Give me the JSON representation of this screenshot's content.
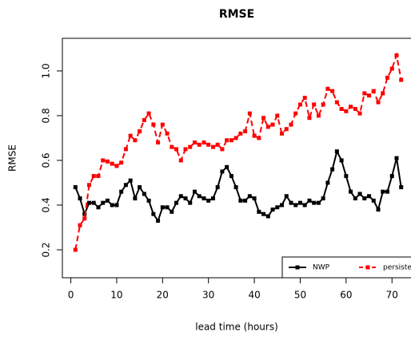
{
  "chart_data": {
    "type": "line",
    "title": "RMSE",
    "xlabel": "lead time (hours)",
    "ylabel": "RMSE",
    "x": [
      1,
      2,
      3,
      4,
      5,
      6,
      7,
      8,
      9,
      10,
      11,
      12,
      13,
      14,
      15,
      16,
      17,
      18,
      19,
      20,
      21,
      22,
      23,
      24,
      25,
      26,
      27,
      28,
      29,
      30,
      31,
      32,
      33,
      34,
      35,
      36,
      37,
      38,
      39,
      40,
      41,
      42,
      43,
      44,
      45,
      46,
      47,
      48,
      49,
      50,
      51,
      52,
      53,
      54,
      55,
      56,
      57,
      58,
      59,
      60,
      61,
      62,
      63,
      64,
      65,
      66,
      67,
      68,
      69,
      70,
      71,
      72
    ],
    "series": [
      {
        "name": "NWP",
        "color": "#000000",
        "dashed": false,
        "values": [
          0.48,
          0.43,
          0.36,
          0.41,
          0.41,
          0.39,
          0.41,
          0.42,
          0.4,
          0.4,
          0.46,
          0.49,
          0.51,
          0.43,
          0.48,
          0.45,
          0.42,
          0.36,
          0.33,
          0.39,
          0.39,
          0.37,
          0.41,
          0.44,
          0.43,
          0.41,
          0.46,
          0.44,
          0.43,
          0.42,
          0.43,
          0.48,
          0.55,
          0.57,
          0.53,
          0.48,
          0.42,
          0.42,
          0.44,
          0.43,
          0.37,
          0.36,
          0.35,
          0.38,
          0.39,
          0.4,
          0.44,
          0.41,
          0.4,
          0.41,
          0.4,
          0.42,
          0.41,
          0.41,
          0.43,
          0.5,
          0.56,
          0.64,
          0.6,
          0.53,
          0.46,
          0.43,
          0.45,
          0.43,
          0.44,
          0.42,
          0.38,
          0.46,
          0.46,
          0.53,
          0.61,
          0.48
        ]
      },
      {
        "name": "persistence",
        "color": "#ff0000",
        "dashed": true,
        "values": [
          0.2,
          0.31,
          0.34,
          0.49,
          0.53,
          0.53,
          0.6,
          0.595,
          0.585,
          0.575,
          0.59,
          0.65,
          0.71,
          0.69,
          0.73,
          0.78,
          0.81,
          0.76,
          0.68,
          0.76,
          0.72,
          0.66,
          0.65,
          0.6,
          0.65,
          0.66,
          0.68,
          0.67,
          0.68,
          0.67,
          0.66,
          0.67,
          0.65,
          0.69,
          0.69,
          0.7,
          0.72,
          0.73,
          0.81,
          0.71,
          0.7,
          0.79,
          0.75,
          0.76,
          0.8,
          0.72,
          0.74,
          0.76,
          0.81,
          0.85,
          0.88,
          0.79,
          0.85,
          0.8,
          0.85,
          0.92,
          0.91,
          0.86,
          0.83,
          0.82,
          0.84,
          0.83,
          0.81,
          0.9,
          0.89,
          0.91,
          0.86,
          0.9,
          0.97,
          1.01,
          1.07,
          0.96
        ]
      }
    ],
    "xlim": [
      -1.84,
      74.84
    ],
    "ylim": [
      0.075,
      1.146
    ],
    "xticks": [
      0,
      10,
      20,
      30,
      40,
      50,
      60,
      70
    ],
    "yticks": [
      0.2,
      0.4,
      0.6,
      0.8,
      {
        "value": 1,
        "label": "1.0"
      }
    ],
    "legend": "bottomright",
    "grid": false
  }
}
